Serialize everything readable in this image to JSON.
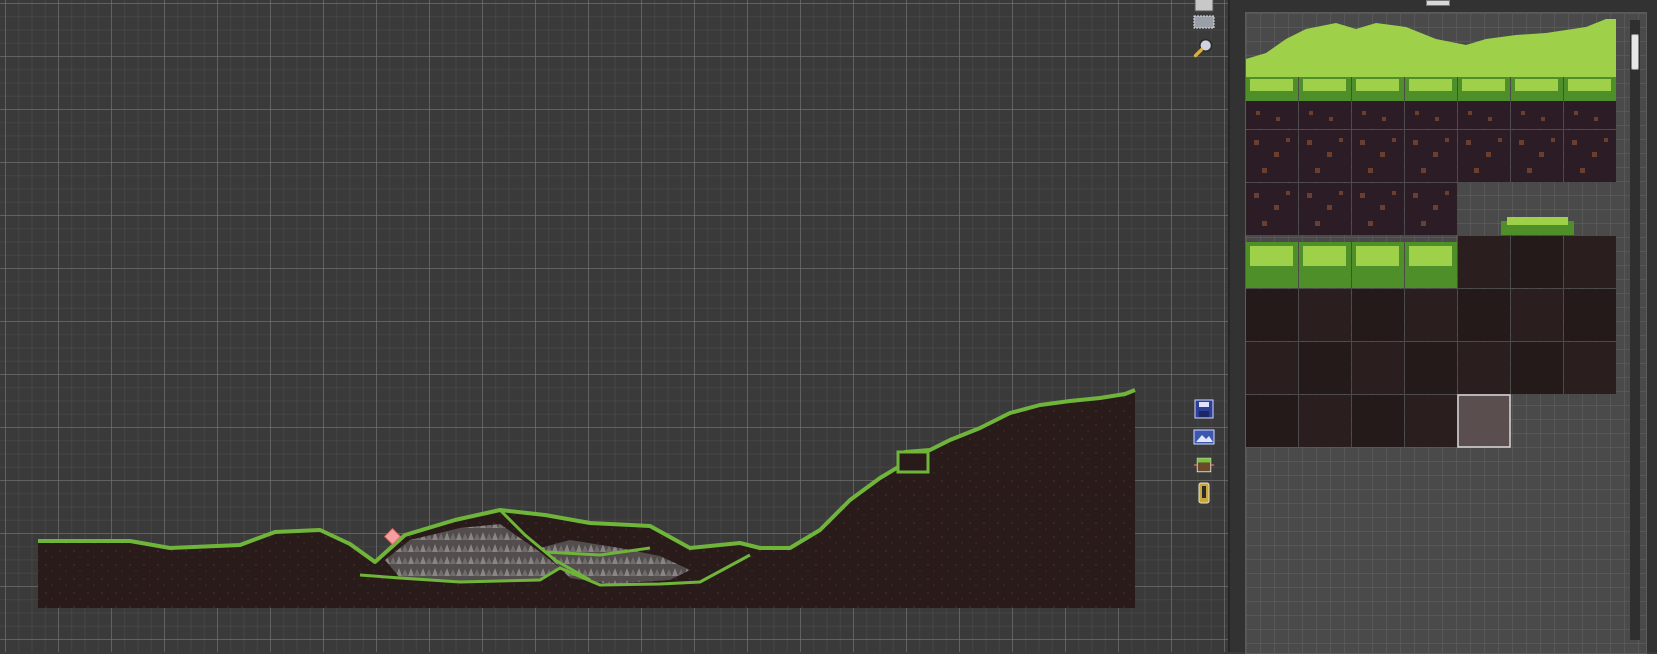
{
  "app": {
    "view": "room-editor"
  },
  "canvas": {
    "grid_color": "#787878",
    "background_color": "#3a3a3a"
  },
  "terrain": {
    "dirt_color": "#2a1b1b",
    "grass_color": "#6fb53a",
    "rock_color": "#8a8a8a"
  },
  "toolbar_top": [
    {
      "name": "layer-icon"
    },
    {
      "name": "select-rect-icon"
    },
    {
      "name": "zoom-icon"
    }
  ],
  "toolbar_mid": [
    {
      "name": "save-icon"
    },
    {
      "name": "background-icon"
    },
    {
      "name": "tile-layer-icon"
    },
    {
      "name": "path-icon"
    }
  ],
  "tileset": {
    "columns": 7,
    "rows": 8,
    "selected_index": 32,
    "colors": {
      "grass_light": "#9ed04a",
      "grass_dark": "#4f8f2a",
      "dirt": "#2b1c26",
      "dirt_speck": "#6b3f2f",
      "empty_dark": "#2a1e1e",
      "empty_light": "#5a4e4e"
    }
  }
}
